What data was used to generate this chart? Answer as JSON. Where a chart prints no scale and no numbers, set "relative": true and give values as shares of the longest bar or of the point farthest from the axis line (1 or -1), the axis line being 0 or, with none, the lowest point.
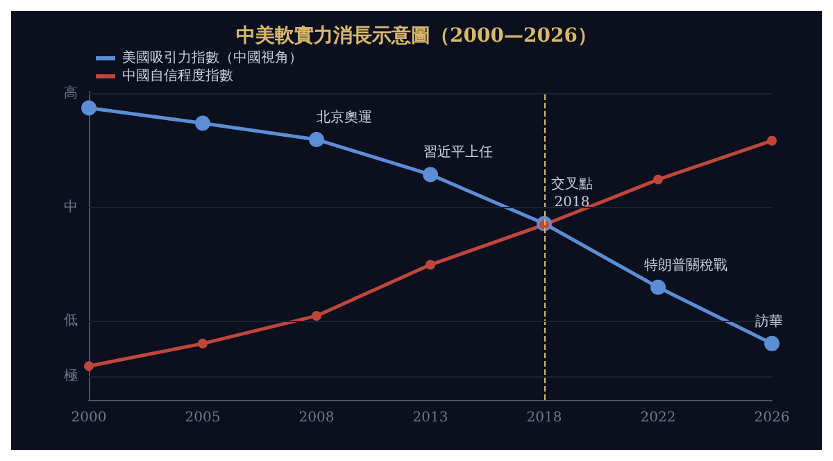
{
  "chart_data": {
    "type": "line",
    "title": "中美軟實力消長示意圖（2000—2026）",
    "categories": [
      "2000",
      "2005",
      "2008",
      "2013",
      "2018",
      "2022",
      "2026"
    ],
    "relative": true,
    "series": [
      {
        "name": "美國吸引力指數（中國視角）",
        "color": "#5b8ed6",
        "values": [
          1,
          0.948,
          0.892,
          0.772,
          0.604,
          0.386,
          0.193
        ]
      },
      {
        "name": "中國自信程度指數",
        "color": "#c0463b",
        "values": [
          0.116,
          0.193,
          0.288,
          0.463,
          0.6,
          0.755,
          0.888
        ]
      }
    ],
    "annotations": [
      {
        "text": "北京奧運",
        "x": "2008",
        "y": 0.892
      },
      {
        "text": "習近平上任",
        "x": "2013",
        "y": 0.772
      },
      {
        "text": "交叉點\n2018",
        "x": "2018",
        "y": 0.602
      },
      {
        "text": "特朗普關稅戰",
        "x": "2022",
        "y": 0.386
      },
      {
        "text": "訪華",
        "x": "2026",
        "y": 0.193
      }
    ],
    "ref_lines": [
      {
        "axis": "x",
        "value": "2018",
        "color": "#d9b86a",
        "line_style": "dashed"
      },
      {
        "axis": "y",
        "value": 1.046,
        "label": "高",
        "color": "#1c2233"
      },
      {
        "axis": "y",
        "value": 0.66,
        "label": "中",
        "color": "#1c2233"
      },
      {
        "axis": "y",
        "value": 0.274,
        "label": "低",
        "color": "#1c2233"
      },
      {
        "axis": "y",
        "value": 0.081,
        "label": "極",
        "color": "#1c2233"
      }
    ],
    "legend": "top left",
    "marker": "circle",
    "line_style": "solid"
  }
}
